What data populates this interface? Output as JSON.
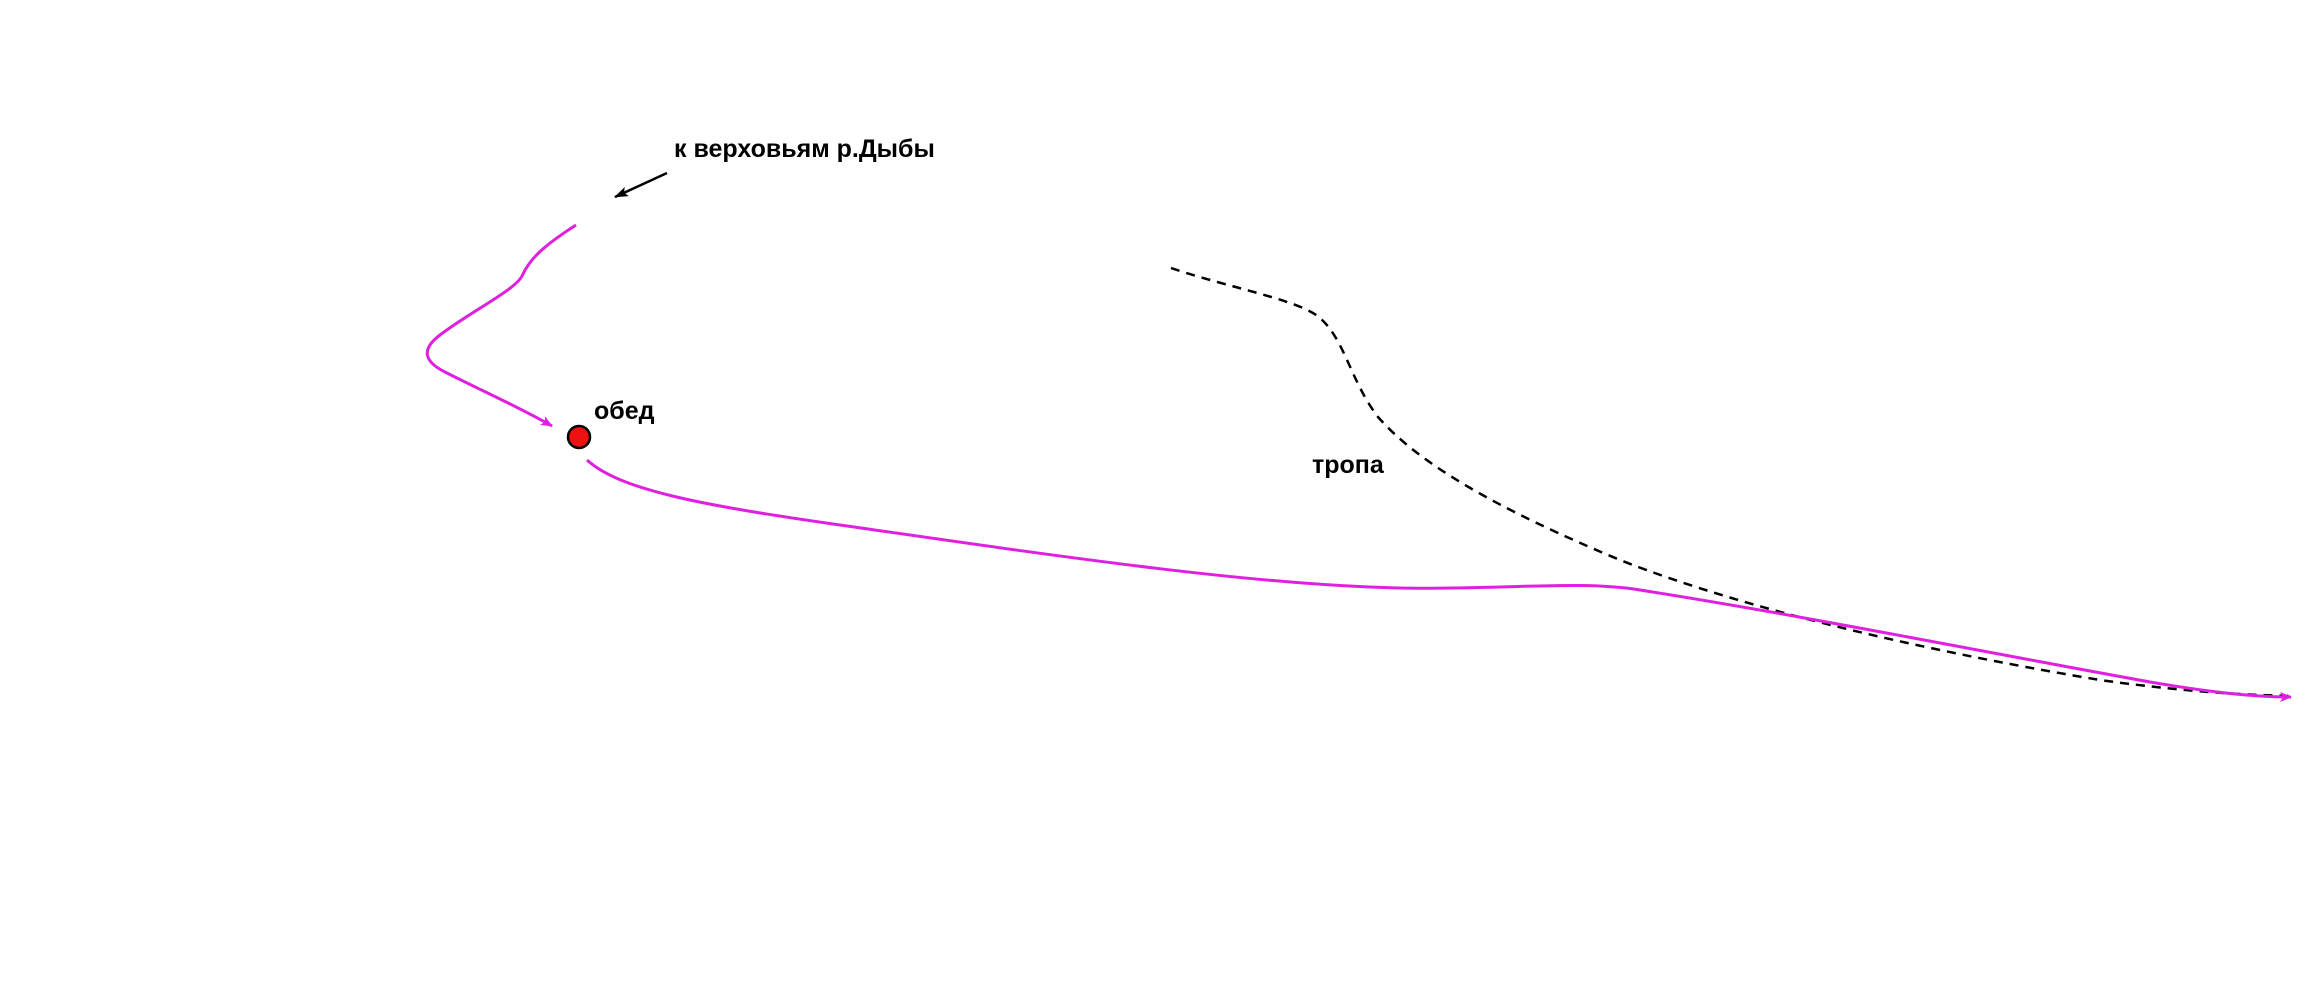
{
  "labels": {
    "upstream": "к верховьям р.Дыбы",
    "lunch": "обед",
    "trail": "тропа"
  }
}
